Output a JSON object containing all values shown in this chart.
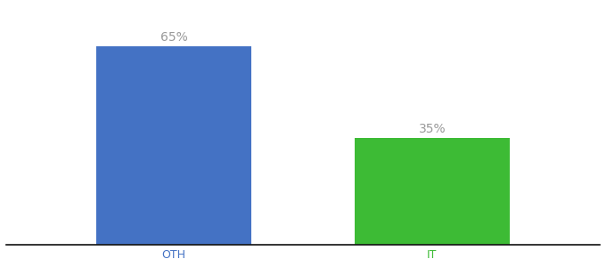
{
  "categories": [
    "OTH",
    "IT"
  ],
  "values": [
    65,
    35
  ],
  "bar_colors": [
    "#4472c4",
    "#3dbb35"
  ],
  "label_texts": [
    "65%",
    "35%"
  ],
  "label_color": "#999999",
  "ylim": [
    0,
    78
  ],
  "background_color": "#ffffff",
  "label_fontsize": 10,
  "tick_fontsize": 9,
  "tick_color": "#4472c4",
  "tick_color_it": "#3dbb35",
  "bar_width": 0.6,
  "x_positions": [
    0,
    1
  ],
  "figsize": [
    6.8,
    3.0
  ],
  "dpi": 100
}
